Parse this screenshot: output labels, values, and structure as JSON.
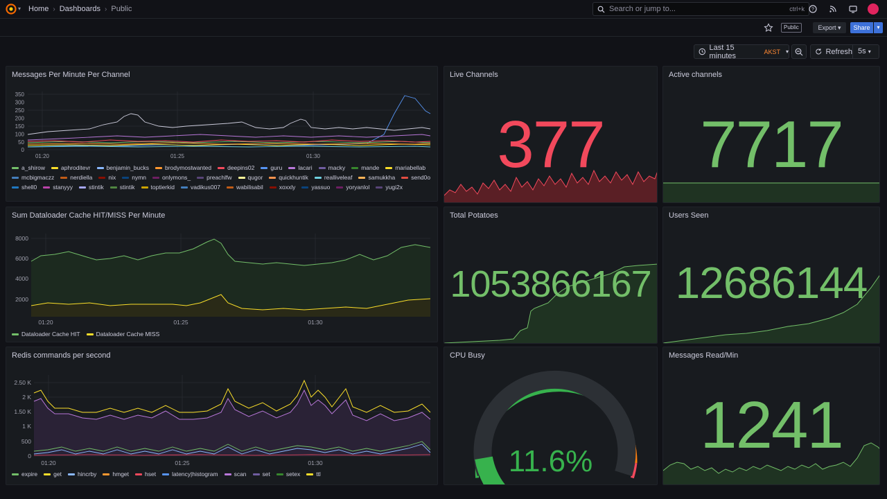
{
  "breadcrumb": {
    "home": "Home",
    "dashboards": "Dashboards",
    "current": "Public"
  },
  "search": {
    "placeholder": "Search or jump to...",
    "shortcut": "ctrl+k"
  },
  "toolbar": {
    "public_badge": "Public",
    "export_label": "Export",
    "share_label": "Share"
  },
  "time": {
    "range": "Last 15 minutes",
    "timezone": "AKST",
    "refresh_label": "Refresh",
    "interval": "5s"
  },
  "colors": {
    "accent": "#3d71d9",
    "red": "#f2495c",
    "green": "#73bf69",
    "bg": "#111217",
    "panel": "#181b1f"
  },
  "panels": {
    "messages": {
      "title": "Messages Per Minute Per Channel",
      "yticks": [
        "350",
        "300",
        "250",
        "200",
        "150",
        "100",
        "50",
        "0"
      ],
      "xticks": [
        "01:20",
        "01:25",
        "01:30"
      ],
      "legend": [
        {
          "name": "a_shirow",
          "color": "#73bf69"
        },
        {
          "name": "aphroditevr",
          "color": "#fade2a"
        },
        {
          "name": "benjamin_bucks",
          "color": "#8ab8ff"
        },
        {
          "name": "brodymostwanted",
          "color": "#ff9830"
        },
        {
          "name": "deepins02",
          "color": "#f2495c"
        },
        {
          "name": "guru",
          "color": "#5794f2"
        },
        {
          "name": "lacari",
          "color": "#b877d9"
        },
        {
          "name": "macky",
          "color": "#705da0"
        },
        {
          "name": "mande",
          "color": "#37872d"
        },
        {
          "name": "mariabellab",
          "color": "#fade2a"
        },
        {
          "name": "mcbigmaczz",
          "color": "#447ebc"
        },
        {
          "name": "nerdiella",
          "color": "#c15c17"
        },
        {
          "name": "nix",
          "color": "#890f02"
        },
        {
          "name": "nymn",
          "color": "#0a437c"
        },
        {
          "name": "onlymons_",
          "color": "#6d1f62"
        },
        {
          "name": "preachlfw",
          "color": "#584477"
        },
        {
          "name": "qugor",
          "color": "#fff899"
        },
        {
          "name": "quickhuntik",
          "color": "#f9934e"
        },
        {
          "name": "realliveleaf",
          "color": "#6ed0e0"
        },
        {
          "name": "samukkha",
          "color": "#ffb357"
        },
        {
          "name": "send0o",
          "color": "#e24d42"
        },
        {
          "name": "shell0",
          "color": "#1f78c1"
        },
        {
          "name": "stanyyy",
          "color": "#ba43a9"
        },
        {
          "name": "stintik",
          "color": "#a6a6f2"
        },
        {
          "name": "stintik",
          "color": "#508642"
        },
        {
          "name": "toptierkid",
          "color": "#cca300"
        },
        {
          "name": "vadikus007",
          "color": "#447ebc"
        },
        {
          "name": "wabilisabil",
          "color": "#c15c17"
        },
        {
          "name": "xoxxly",
          "color": "#890f02"
        },
        {
          "name": "yassuo",
          "color": "#0a437c"
        },
        {
          "name": "yoryanlol",
          "color": "#6d1f62"
        },
        {
          "name": "yugi2x",
          "color": "#584477"
        }
      ]
    },
    "live": {
      "title": "Live Channels",
      "value": "377"
    },
    "active": {
      "title": "Active channels",
      "value": "7717"
    },
    "cache": {
      "title": "Sum Dataloader Cache HIT/MISS Per Minute",
      "yticks": [
        "8000",
        "6000",
        "4000",
        "2000"
      ],
      "xticks": [
        "01:20",
        "01:25",
        "01:30"
      ],
      "legend": [
        {
          "name": "Dataloader Cache HIT",
          "color": "#73bf69"
        },
        {
          "name": "Dataloader Cache MISS",
          "color": "#fade2a"
        }
      ]
    },
    "potatoes": {
      "title": "Total Potatoes",
      "value": "1053866167"
    },
    "users": {
      "title": "Users Seen",
      "value": "12686144"
    },
    "redis": {
      "title": "Redis commands per second",
      "yticks": [
        "2.50 K",
        "2 K",
        "1.50 K",
        "1 K",
        "500",
        "0"
      ],
      "xticks": [
        "01:20",
        "01:25",
        "01:30"
      ],
      "legend": [
        {
          "name": "expire",
          "color": "#73bf69"
        },
        {
          "name": "get",
          "color": "#fade2a"
        },
        {
          "name": "hincrby",
          "color": "#8ab8ff"
        },
        {
          "name": "hmget",
          "color": "#ff9830"
        },
        {
          "name": "hset",
          "color": "#f2495c"
        },
        {
          "name": "latency|histogram",
          "color": "#5794f2"
        },
        {
          "name": "scan",
          "color": "#b877d9"
        },
        {
          "name": "set",
          "color": "#705da0"
        },
        {
          "name": "setex",
          "color": "#37872d"
        },
        {
          "name": "ttl",
          "color": "#fade2a"
        }
      ]
    },
    "cpu": {
      "title": "CPU Busy",
      "value": "11.6%",
      "fraction": 0.116
    },
    "reads": {
      "title": "Messages Read/Min",
      "value": "1241"
    }
  }
}
